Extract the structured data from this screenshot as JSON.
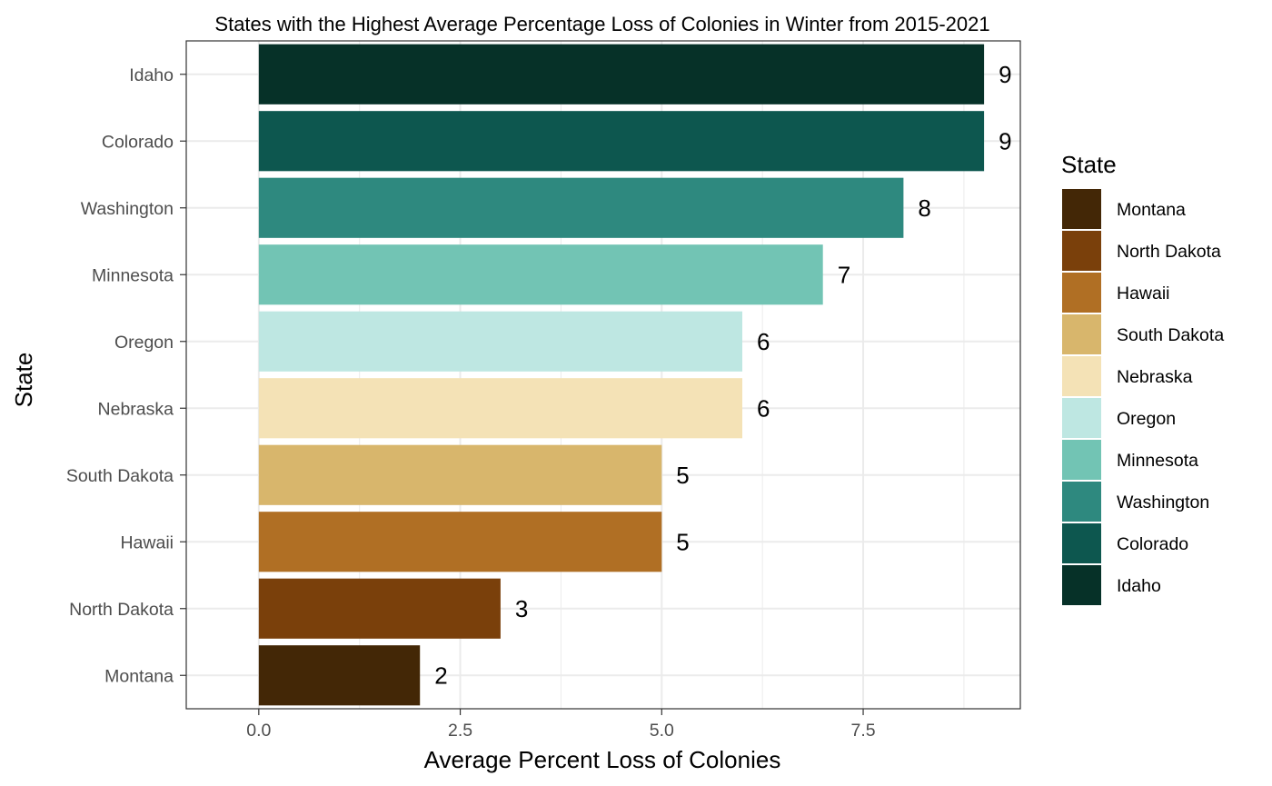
{
  "chart_data": {
    "type": "bar",
    "orientation": "horizontal",
    "title": "States with the Highest Average Percentage Loss of Colonies in Winter from 2015-2021",
    "xlabel": "Average Percent Loss of Colonies",
    "ylabel": "State",
    "xlim": [
      -0.9,
      9.45
    ],
    "x_ticks": [
      "0.0",
      "2.5",
      "5.0",
      "7.5"
    ],
    "x_tick_values": [
      0,
      2.5,
      5,
      7.5
    ],
    "x_minor_ticks": [
      1.25,
      3.75,
      6.25,
      8.75
    ],
    "grid": true,
    "categories": [
      "Idaho",
      "Colorado",
      "Washington",
      "Minnesota",
      "Oregon",
      "Nebraska",
      "South Dakota",
      "Hawaii",
      "North Dakota",
      "Montana"
    ],
    "values": [
      9,
      9,
      8,
      7,
      6,
      6,
      5,
      5,
      3,
      2
    ],
    "data_labels": [
      "9",
      "9",
      "8",
      "7",
      "6",
      "6",
      "5",
      "5",
      "3",
      "2"
    ],
    "colors": {
      "Idaho": "#063128",
      "Colorado": "#0d574f",
      "Washington": "#2e897f",
      "Minnesota": "#72c4b4",
      "Oregon": "#bee7e2",
      "Nebraska": "#f4e2b6",
      "South Dakota": "#d8b66c",
      "Hawaii": "#b06f24",
      "North Dakota": "#7a400b",
      "Montana": "#432706"
    },
    "legend": {
      "title": "State",
      "position": "right",
      "entries": [
        "Montana",
        "North Dakota",
        "Hawaii",
        "South Dakota",
        "Nebraska",
        "Oregon",
        "Minnesota",
        "Washington",
        "Colorado",
        "Idaho"
      ]
    }
  }
}
